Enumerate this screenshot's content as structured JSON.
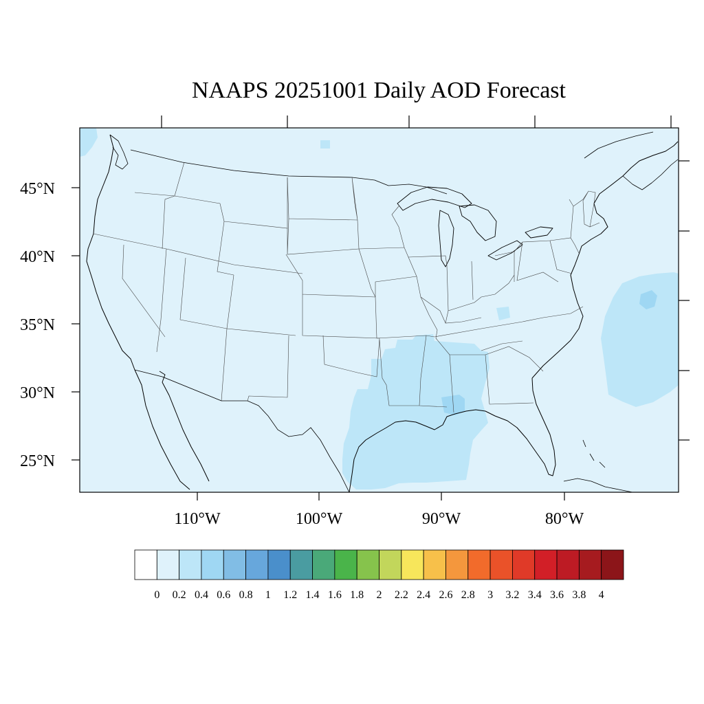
{
  "title": "NAAPS 20251001 Daily AOD Forecast",
  "lat_labels": [
    {
      "text": "45°N",
      "lat": 45
    },
    {
      "text": "40°N",
      "lat": 40
    },
    {
      "text": "35°N",
      "lat": 35
    },
    {
      "text": "30°N",
      "lat": 30
    },
    {
      "text": "25°N",
      "lat": 25
    }
  ],
  "lon_labels": [
    {
      "text": "110°W",
      "lon": -110
    },
    {
      "text": "100°W",
      "lon": -100
    },
    {
      "text": "90°W",
      "lon": -90
    },
    {
      "text": "80°W",
      "lon": -80
    }
  ],
  "colorbar": {
    "tick_labels": [
      "0",
      "0.2",
      "0.4",
      "0.6",
      "0.8",
      "1",
      "1.2",
      "1.4",
      "1.6",
      "1.8",
      "2",
      "2.2",
      "2.4",
      "2.6",
      "2.8",
      "3",
      "3.2",
      "3.4",
      "3.6",
      "3.8",
      "4"
    ],
    "colors": [
      "#ffffff",
      "#dff2fb",
      "#bde6f8",
      "#9fd7f3",
      "#81bde5",
      "#67a7dc",
      "#4a8fcb",
      "#4a9ca1",
      "#4aa979",
      "#4ab44a",
      "#86c34c",
      "#c2d65b",
      "#f7e65b",
      "#f7c04a",
      "#f4973d",
      "#f26b2b",
      "#ea5229",
      "#e03a28",
      "#d21f27",
      "#bd1b24",
      "#a61b1f",
      "#8c1519"
    ]
  },
  "map": {
    "background_color": "#dff2fb",
    "aod_regions": [
      {
        "name": "gulf-coast-plume",
        "aod_level": 0.3,
        "color": "#bde6f8"
      },
      {
        "name": "atlantic-plume",
        "aod_level": 0.3,
        "color": "#bde6f8"
      },
      {
        "name": "atlantic-core",
        "aod_level": 0.5,
        "color": "#9fd7f3"
      },
      {
        "name": "alabama-core",
        "aod_level": 0.5,
        "color": "#9fd7f3"
      },
      {
        "name": "northwest-corner",
        "aod_level": 0.3,
        "color": "#bde6f8"
      }
    ]
  }
}
